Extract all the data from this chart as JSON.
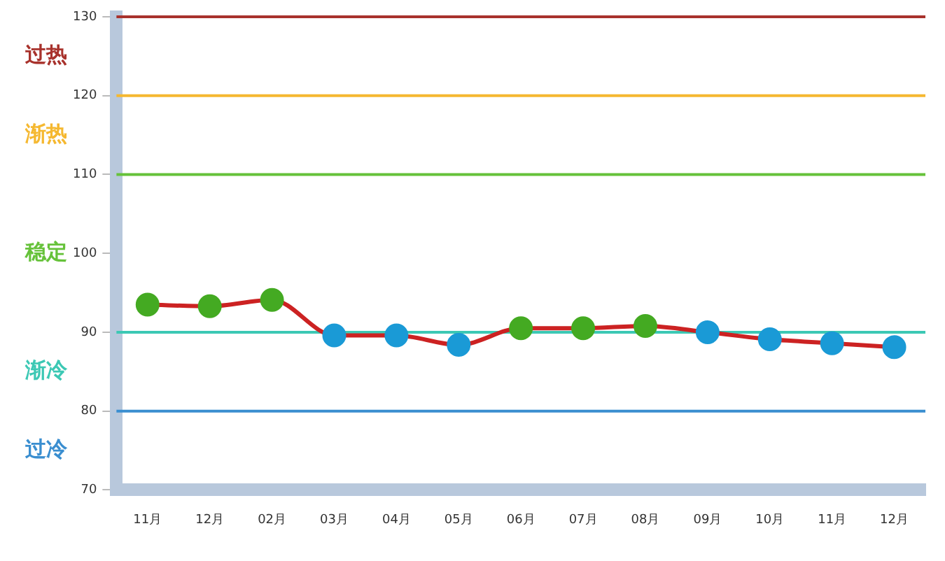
{
  "chart_data": {
    "type": "line",
    "categories": [
      "11月",
      "12月",
      "02月",
      "03月",
      "04月",
      "05月",
      "06月",
      "07月",
      "08月",
      "09月",
      "10月",
      "11月",
      "12月"
    ],
    "series": [
      {
        "color": "#cc2222",
        "values": [
          93.5,
          93.3,
          94.1,
          89.6,
          89.6,
          88.4,
          90.5,
          90.5,
          90.8,
          90.0,
          89.1,
          88.6,
          88.1
        ],
        "colors": [
          "#44aa22",
          "#44aa22",
          "#44aa22",
          "#1a9ad6",
          "#1a9ad6",
          "#1a9ad6",
          "#44aa22",
          "#44aa22",
          "#44aa22",
          "#1a9ad6",
          "#1a9ad6",
          "#1a9ad6",
          "#1a9ad6"
        ]
      }
    ],
    "ylim": [
      70,
      130
    ],
    "yticks": [
      70,
      80,
      90,
      100,
      110,
      120,
      130
    ],
    "grid": false,
    "legend": false,
    "marker": "circle",
    "line_style": "solid",
    "ref_lines": [
      {
        "axis": "y",
        "value": 130,
        "color": "#a8322c",
        "label": "过热"
      },
      {
        "axis": "y",
        "value": 120,
        "color": "#f5b830",
        "label": "渐热"
      },
      {
        "axis": "y",
        "value": 110,
        "color": "#66c23a",
        "label": "稳定"
      },
      {
        "axis": "y",
        "value": 90,
        "color": "#3cc8b4",
        "label": "渐冷"
      },
      {
        "axis": "y",
        "value": 80,
        "color": "#3a8ed0",
        "label": "过冷"
      }
    ]
  }
}
